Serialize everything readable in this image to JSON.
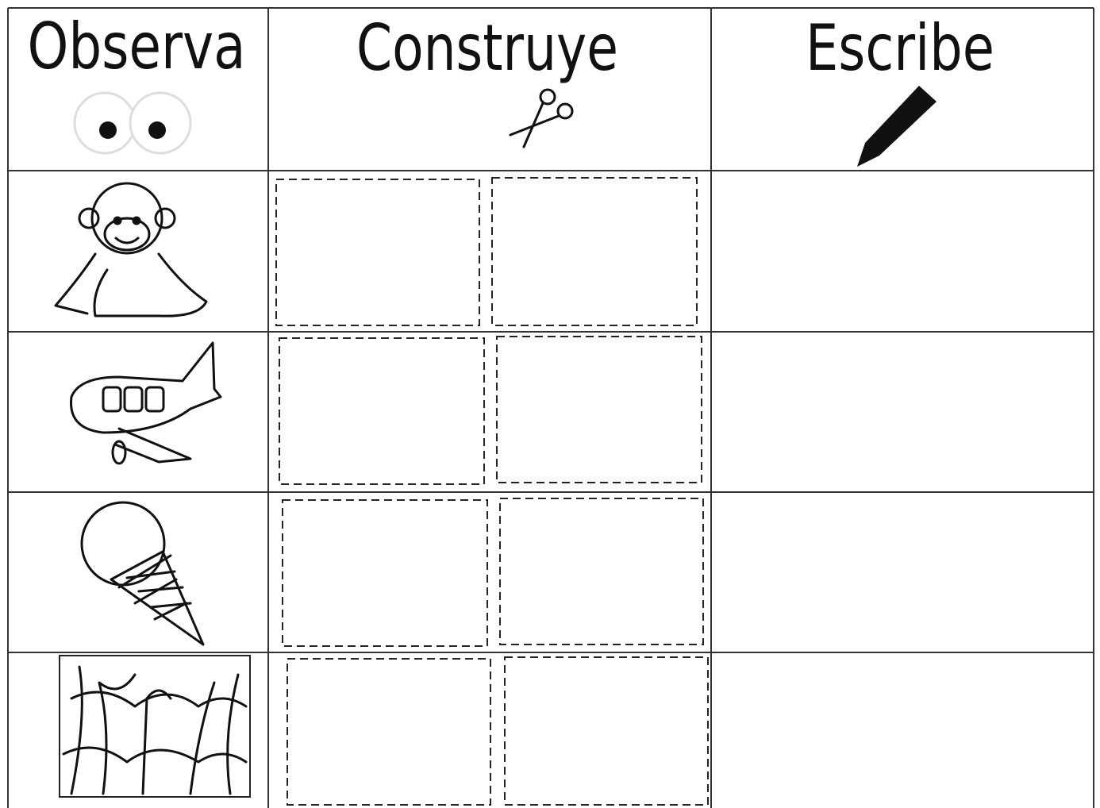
{
  "header": {
    "columns": [
      "Observa",
      "Construye",
      "Escribe"
    ]
  }
}
